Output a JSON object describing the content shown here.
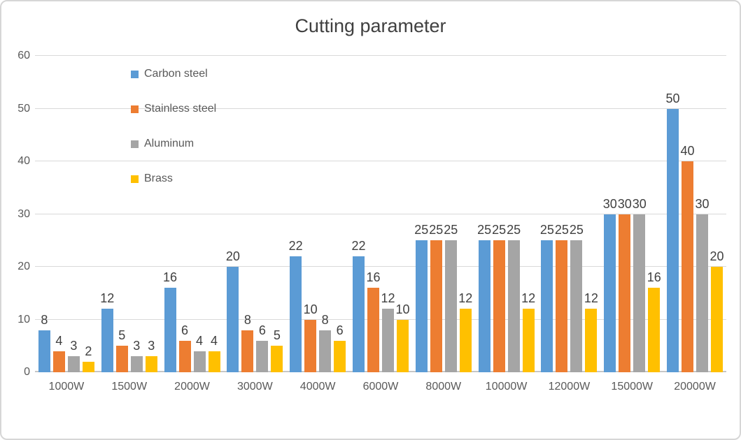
{
  "window": {
    "background_color": "#ffffff",
    "border_color": "#d6d6d6"
  },
  "colors": {
    "title_text": "#404040",
    "data_label_text": "#404040",
    "axis_text": "#595959",
    "gridline": "#d9d9d9",
    "baseline": "#c6c6c6"
  },
  "chart_data": {
    "type": "bar",
    "title": "Cutting parameter",
    "categories": [
      "1000W",
      "1500W",
      "2000W",
      "3000W",
      "4000W",
      "6000W",
      "8000W",
      "10000W",
      "12000W",
      "15000W",
      "20000W"
    ],
    "series": [
      {
        "name": "Carbon steel",
        "color": "#5b9bd5",
        "values": [
          8,
          12,
          16,
          20,
          22,
          22,
          25,
          25,
          25,
          30,
          50
        ]
      },
      {
        "name": "Stainless steel",
        "color": "#ed7d31",
        "values": [
          4,
          5,
          6,
          8,
          10,
          16,
          25,
          25,
          25,
          30,
          40
        ]
      },
      {
        "name": "Aluminum",
        "color": "#a5a5a5",
        "values": [
          3,
          3,
          4,
          6,
          8,
          12,
          25,
          25,
          25,
          30,
          30
        ]
      },
      {
        "name": "Brass",
        "color": "#ffc000",
        "values": [
          2,
          3,
          4,
          5,
          6,
          10,
          12,
          12,
          12,
          16,
          20
        ]
      }
    ],
    "xlabel": "",
    "ylabel": "",
    "ylim": [
      0,
      60
    ],
    "y_ticks": [
      0,
      10,
      20,
      30,
      40,
      50,
      60
    ],
    "grid": true,
    "data_labels": true,
    "legend_position": "inside-top-left"
  }
}
